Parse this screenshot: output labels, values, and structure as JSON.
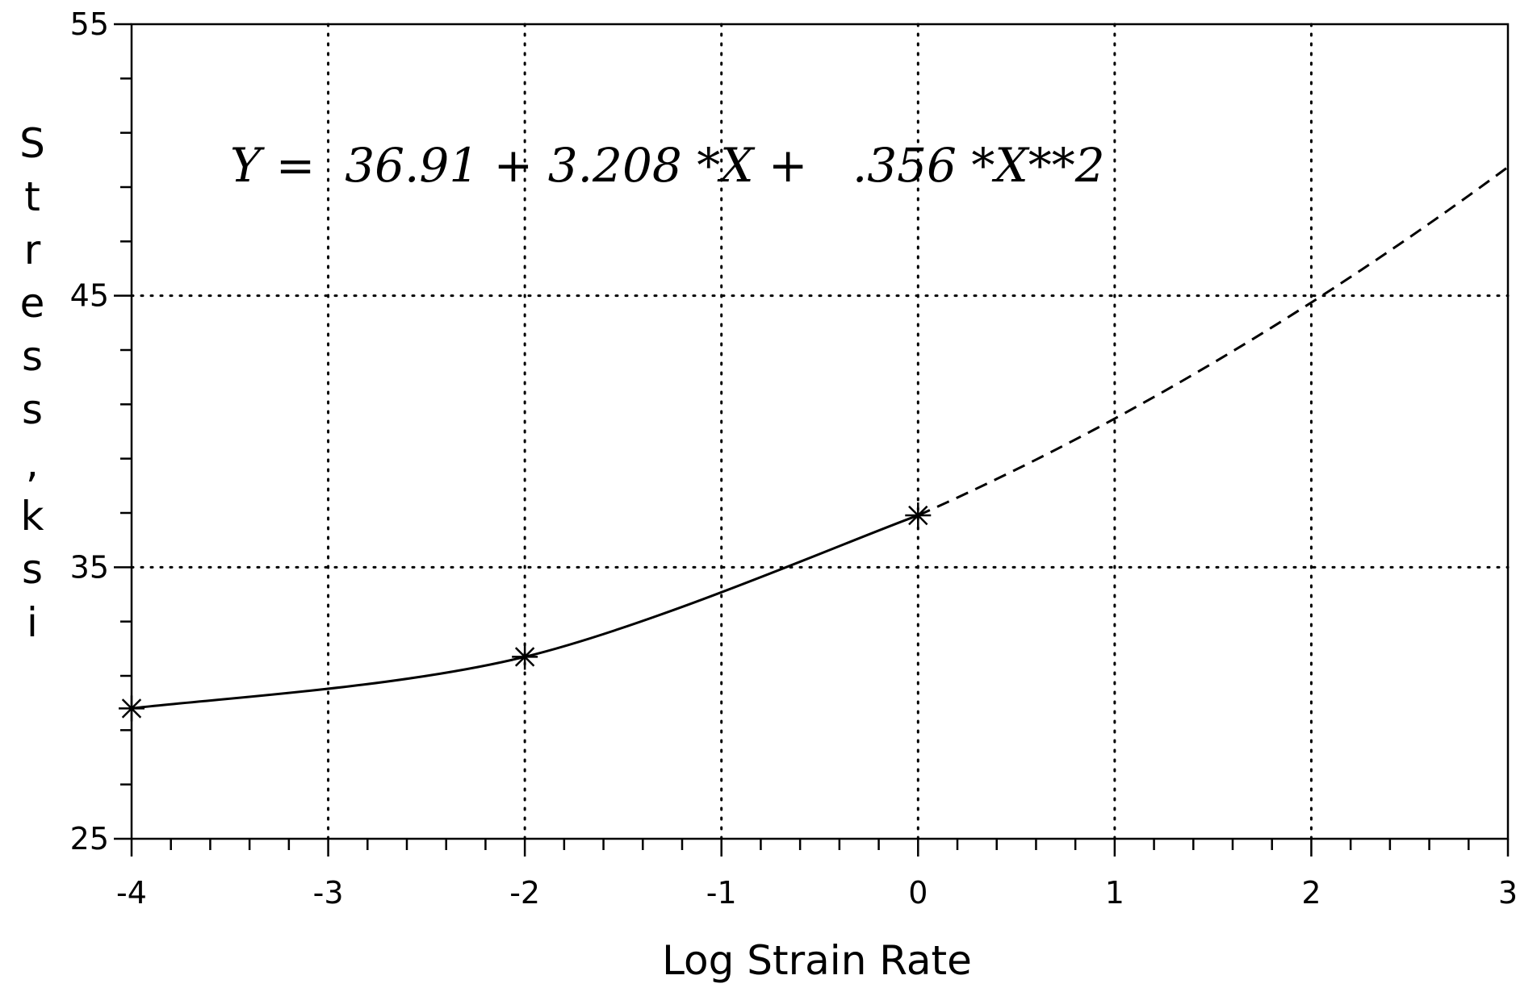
{
  "chart_data": {
    "type": "line",
    "xlabel": "Log Strain Rate",
    "ylabel": "Stress, ksi",
    "ylabel_chars": [
      "S",
      "t",
      "r",
      "e",
      "s",
      "s",
      ",",
      "k",
      "s",
      "i"
    ],
    "xlim": [
      -4,
      3
    ],
    "ylim": [
      25,
      55
    ],
    "xticks": [
      -4,
      -3,
      -2,
      -1,
      0,
      1,
      2,
      3
    ],
    "xtick_labels": [
      "-4",
      "-3",
      "-2",
      "-1",
      "0",
      "1",
      "2",
      "3"
    ],
    "yticks": [
      25,
      35,
      45,
      55
    ],
    "ytick_labels": [
      "25",
      "35",
      "45",
      "55"
    ],
    "grid": true,
    "annotation": "Y =  36.91 + 3.208 *X +   .356 *X**2",
    "fit": {
      "intercept": 36.91,
      "linear": 3.208,
      "quadratic": 0.356
    },
    "series": [
      {
        "marker": "asterisk",
        "points": [
          {
            "x": -4,
            "y": 29.8
          },
          {
            "x": -2,
            "y": 31.7
          },
          {
            "x": 0,
            "y": 36.91
          }
        ]
      }
    ],
    "fit_segments": [
      {
        "style": "solid",
        "x_from": -4,
        "x_to": 0
      },
      {
        "style": "dashed",
        "x_from": 0,
        "x_to": 3
      }
    ],
    "colors": {
      "line": "#000000",
      "grid": "#000000",
      "background": "#ffffff"
    }
  }
}
